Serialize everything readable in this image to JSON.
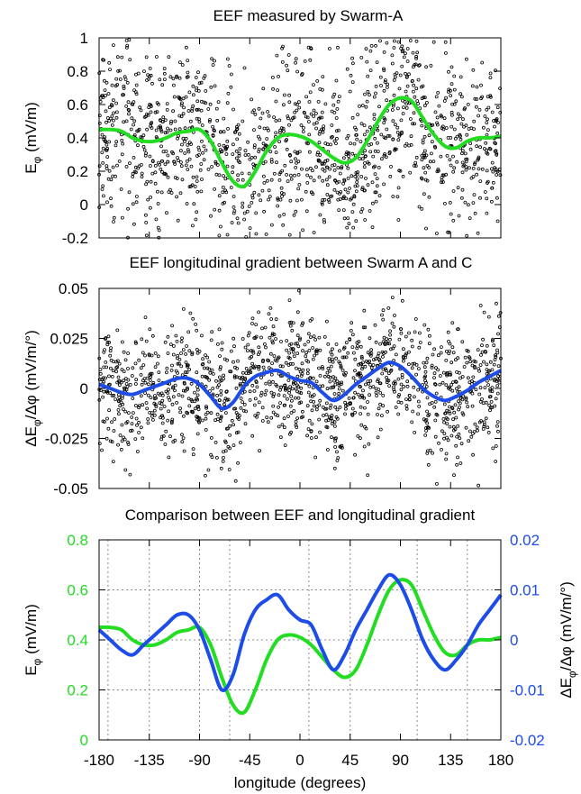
{
  "colors": {
    "eef_curve": "#22dd22",
    "gradient_curve": "#1d4ce8",
    "scatter_points": "#000000",
    "left_axis_ticks_bottom": "#22dd22",
    "right_axis_ticks_bottom": "#1d4ce8"
  },
  "chart_data": [
    {
      "type": "scatter",
      "title": "EEF measured by Swarm-A",
      "ylabel": "Eφ (mV/m)",
      "xlabel": "",
      "xlim": [
        -180,
        180
      ],
      "ylim": [
        -0.2,
        1
      ],
      "y_ticks": [
        "-0.2",
        "0",
        "0.2",
        "0.4",
        "0.6",
        "0.8",
        "1"
      ],
      "x_tick_labels_shown": false,
      "grid": false,
      "series": [
        {
          "kind": "scatter",
          "note_values": "dense cloud of measurements scattered around the fitted curve",
          "x": [
            -180,
            -170,
            -160,
            -150,
            -140,
            -130,
            -120,
            -110,
            -100,
            -90,
            -80,
            -70,
            -60,
            -50,
            -40,
            -30,
            -20,
            -10,
            0,
            10,
            20,
            30,
            40,
            50,
            60,
            70,
            80,
            90,
            100,
            110,
            120,
            130,
            140,
            150,
            160,
            170,
            180
          ],
          "y": [
            0.45,
            0.45,
            0.44,
            0.4,
            0.38,
            0.38,
            0.4,
            0.43,
            0.44,
            0.45,
            0.38,
            0.25,
            0.14,
            0.11,
            0.2,
            0.32,
            0.4,
            0.42,
            0.41,
            0.38,
            0.33,
            0.28,
            0.25,
            0.28,
            0.38,
            0.5,
            0.6,
            0.64,
            0.62,
            0.52,
            0.42,
            0.35,
            0.34,
            0.38,
            0.4,
            0.4,
            0.41
          ]
        },
        {
          "kind": "line",
          "color": "#22dd22",
          "x": [
            -180,
            -170,
            -160,
            -150,
            -140,
            -130,
            -120,
            -110,
            -100,
            -90,
            -80,
            -70,
            -60,
            -50,
            -40,
            -30,
            -20,
            -10,
            0,
            10,
            20,
            30,
            40,
            50,
            60,
            70,
            80,
            90,
            100,
            110,
            120,
            130,
            140,
            150,
            160,
            170,
            180
          ],
          "y": [
            0.45,
            0.45,
            0.44,
            0.4,
            0.38,
            0.38,
            0.4,
            0.43,
            0.44,
            0.45,
            0.38,
            0.25,
            0.14,
            0.11,
            0.2,
            0.32,
            0.4,
            0.42,
            0.41,
            0.38,
            0.33,
            0.28,
            0.25,
            0.28,
            0.38,
            0.5,
            0.6,
            0.64,
            0.62,
            0.52,
            0.42,
            0.35,
            0.34,
            0.38,
            0.4,
            0.4,
            0.41
          ]
        }
      ]
    },
    {
      "type": "scatter",
      "title": "EEF longitudinal gradient between Swarm A and C",
      "ylabel": "ΔEφ/Δφ (mV/m/°)",
      "xlabel": "",
      "xlim": [
        -180,
        180
      ],
      "ylim": [
        -0.05,
        0.05
      ],
      "y_ticks": [
        "-0.05",
        "-0.025",
        "0",
        "0.025",
        "0.05"
      ],
      "x_tick_labels_shown": false,
      "grid": false,
      "series": [
        {
          "kind": "scatter",
          "note_values": "dense cloud of measurements scattered around the fitted curve",
          "x": [
            -180,
            -170,
            -160,
            -150,
            -140,
            -130,
            -120,
            -110,
            -100,
            -90,
            -80,
            -70,
            -60,
            -50,
            -40,
            -30,
            -20,
            -10,
            0,
            10,
            20,
            30,
            40,
            50,
            60,
            70,
            80,
            90,
            100,
            110,
            120,
            130,
            140,
            150,
            160,
            170,
            180
          ],
          "y": [
            0.002,
            0.0,
            -0.002,
            -0.003,
            -0.001,
            0.001,
            0.003,
            0.005,
            0.005,
            0.002,
            -0.004,
            -0.01,
            -0.007,
            0.001,
            0.006,
            0.008,
            0.009,
            0.006,
            0.004,
            0.003,
            -0.002,
            -0.006,
            -0.003,
            0.002,
            0.006,
            0.01,
            0.013,
            0.011,
            0.006,
            0.0,
            -0.004,
            -0.006,
            -0.004,
            -0.001,
            0.003,
            0.006,
            0.009
          ]
        },
        {
          "kind": "line",
          "color": "#1d4ce8",
          "x": [
            -180,
            -170,
            -160,
            -150,
            -140,
            -130,
            -120,
            -110,
            -100,
            -90,
            -80,
            -70,
            -60,
            -50,
            -40,
            -30,
            -20,
            -10,
            0,
            10,
            20,
            30,
            40,
            50,
            60,
            70,
            80,
            90,
            100,
            110,
            120,
            130,
            140,
            150,
            160,
            170,
            180
          ],
          "y": [
            0.002,
            0.0,
            -0.002,
            -0.003,
            -0.001,
            0.001,
            0.003,
            0.005,
            0.005,
            0.002,
            -0.004,
            -0.01,
            -0.007,
            0.001,
            0.006,
            0.008,
            0.009,
            0.006,
            0.004,
            0.003,
            -0.002,
            -0.006,
            -0.003,
            0.002,
            0.006,
            0.01,
            0.013,
            0.011,
            0.006,
            0.0,
            -0.004,
            -0.006,
            -0.004,
            -0.001,
            0.003,
            0.006,
            0.009
          ]
        }
      ]
    },
    {
      "type": "line",
      "title": "Comparison between EEF and longitudinal gradient",
      "xlabel": "longitude (degrees)",
      "ylabel_left": "Eφ (mV/m)",
      "ylabel_right": "ΔEφ/Δφ (mV/m/°)",
      "xlim": [
        -180,
        180
      ],
      "ylim_left": [
        0,
        0.8
      ],
      "ylim_right": [
        -0.02,
        0.02
      ],
      "x_ticks": [
        "-180",
        "-135",
        "-90",
        "-45",
        "0",
        "45",
        "90",
        "135",
        "180"
      ],
      "y_ticks_left": [
        "0",
        "0.2",
        "0.4",
        "0.6",
        "0.8"
      ],
      "y_ticks_right": [
        "-0.02",
        "-0.01",
        "0",
        "0.01",
        "0.02"
      ],
      "grid": true,
      "grid_x_values": [
        -172,
        -135,
        -90,
        -63,
        8,
        45,
        105,
        150
      ],
      "series": [
        {
          "axis": "left",
          "color": "#22dd22",
          "x": [
            -180,
            -170,
            -160,
            -150,
            -140,
            -130,
            -120,
            -110,
            -100,
            -90,
            -80,
            -70,
            -60,
            -50,
            -40,
            -30,
            -20,
            -10,
            0,
            10,
            20,
            30,
            40,
            50,
            60,
            70,
            80,
            90,
            100,
            110,
            120,
            130,
            140,
            150,
            160,
            170,
            180
          ],
          "y": [
            0.45,
            0.45,
            0.44,
            0.4,
            0.38,
            0.38,
            0.4,
            0.43,
            0.44,
            0.45,
            0.38,
            0.25,
            0.14,
            0.11,
            0.2,
            0.32,
            0.4,
            0.42,
            0.41,
            0.38,
            0.33,
            0.28,
            0.25,
            0.28,
            0.38,
            0.5,
            0.6,
            0.64,
            0.62,
            0.52,
            0.42,
            0.35,
            0.34,
            0.38,
            0.4,
            0.4,
            0.41
          ]
        },
        {
          "axis": "right",
          "color": "#1d4ce8",
          "x": [
            -180,
            -170,
            -160,
            -150,
            -140,
            -130,
            -120,
            -110,
            -100,
            -90,
            -80,
            -70,
            -60,
            -50,
            -40,
            -30,
            -20,
            -10,
            0,
            10,
            20,
            30,
            40,
            50,
            60,
            70,
            80,
            90,
            100,
            110,
            120,
            130,
            140,
            150,
            160,
            170,
            180
          ],
          "y": [
            0.002,
            0.0,
            -0.002,
            -0.003,
            -0.001,
            0.001,
            0.003,
            0.005,
            0.005,
            0.002,
            -0.004,
            -0.01,
            -0.007,
            0.001,
            0.006,
            0.008,
            0.009,
            0.006,
            0.004,
            0.003,
            -0.002,
            -0.006,
            -0.003,
            0.002,
            0.006,
            0.01,
            0.013,
            0.011,
            0.006,
            0.0,
            -0.004,
            -0.006,
            -0.004,
            -0.001,
            0.003,
            0.006,
            0.009
          ]
        }
      ]
    }
  ]
}
